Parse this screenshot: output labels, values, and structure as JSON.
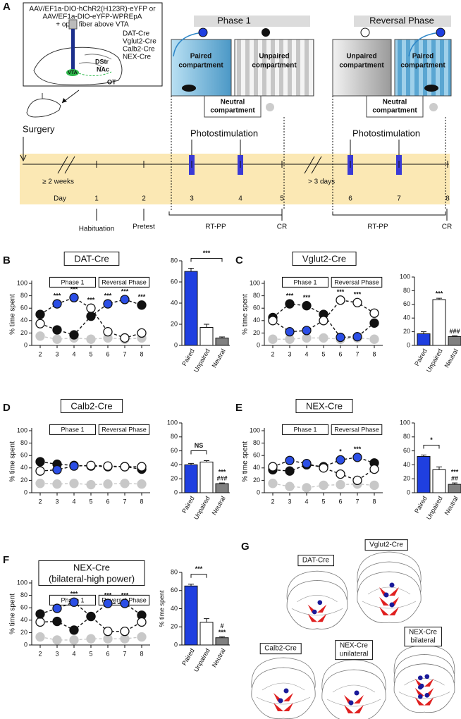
{
  "panel_a": {
    "letter": "A",
    "injection": [
      "AAV/EF1a-DIO-hChR2(H123R)-eYFP or",
      "AAV/EF1a-DIO-eYFP-WPREpA",
      "+ optic fiber above VTA"
    ],
    "lines": [
      "DAT-Cre",
      "Vglut2-Cre",
      "Calb2-Cre",
      "NEX-Cre"
    ],
    "regions": [
      "VTA",
      "DStr",
      "NAc",
      "OT"
    ],
    "phase1": {
      "title": "Phase 1",
      "paired": [
        "Paired",
        "compartment"
      ],
      "unpaired": [
        "Unpaired",
        "compartment"
      ],
      "neutral": [
        "Neutral",
        "compartment"
      ]
    },
    "reversal": {
      "title": "Reversal Phase",
      "paired": [
        "Paired",
        "compartment"
      ],
      "unpaired": [
        "Unpaired",
        "compartment"
      ],
      "neutral": [
        "Neutral",
        "compartment"
      ]
    },
    "timeline": {
      "surgery": "Surgery",
      "interval": "≥ 2 weeks",
      "day": "Day",
      "days": [
        1,
        2,
        3,
        4,
        5,
        6,
        7,
        8
      ],
      "gap": "> 3 days",
      "photostimulation": [
        "Photostimulation",
        "Photostimulation"
      ],
      "stages": [
        "Habituation",
        "Pretest",
        "RT-PP",
        "CR",
        "RT-PP",
        "CR"
      ]
    }
  },
  "chart_data": [
    {
      "type": "line",
      "panel": "B",
      "title": "DAT-Cre",
      "phases": [
        "Phase 1",
        "Reversal Phase"
      ],
      "y_label": "% time spent",
      "categories": [
        "2",
        "3",
        "4",
        "5",
        "6",
        "7",
        "8"
      ],
      "ylim": [
        0,
        100
      ],
      "yticks": [
        0,
        20,
        40,
        60,
        80,
        100
      ],
      "series": [
        {
          "color": "#111111",
          "values": [
            50,
            67,
            77,
            60,
            22,
            12,
            20
          ],
          "point_colors": [
            "#111111",
            "#2b4ee6",
            "#2b4ee6",
            "#ffffff",
            "#ffffff",
            "#ffffff",
            "#ffffff"
          ]
        },
        {
          "color": "#111111",
          "values": [
            35,
            25,
            17,
            47,
            67,
            74,
            65
          ],
          "point_colors": [
            "#ffffff",
            "#111111",
            "#111111",
            "#111111",
            "#2b4ee6",
            "#2b4ee6",
            "#111111"
          ]
        },
        {
          "color": "#c8c8c8",
          "values": [
            15,
            10,
            12,
            10,
            12,
            10,
            12
          ],
          "point_colors": [
            "#c8c8c8",
            "#c8c8c8",
            "#c8c8c8",
            "#c8c8c8",
            "#c8c8c8",
            "#c8c8c8",
            "#c8c8c8"
          ]
        }
      ],
      "annotations": [
        {
          "x": "3",
          "text": "***"
        },
        {
          "x": "4",
          "text": "***"
        },
        {
          "x": "5",
          "text": "***"
        },
        {
          "x": "6",
          "text": "***"
        },
        {
          "x": "7",
          "text": "***"
        },
        {
          "x": "8",
          "text": "***"
        }
      ]
    },
    {
      "type": "bar",
      "categories": [
        "Paired",
        "Unpaired",
        "Neutral"
      ],
      "values": [
        70,
        17,
        7
      ],
      "errors": [
        3,
        3,
        1
      ],
      "colors": [
        "#1f3fe0",
        "#ffffff",
        "#808080"
      ],
      "ylim": [
        0,
        80
      ],
      "yticks": [
        0,
        20,
        40,
        60,
        80
      ],
      "annotations": [
        {
          "text": "***",
          "from": "Paired",
          "to": "Neutral"
        }
      ]
    },
    {
      "type": "line",
      "panel": "C",
      "title": "Vglut2-Cre",
      "phases": [
        "Phase 1",
        "Reversal Phase"
      ],
      "y_label": "% time spent",
      "categories": [
        "2",
        "3",
        "4",
        "5",
        "6",
        "7",
        "8"
      ],
      "ylim": [
        0,
        100
      ],
      "yticks": [
        0,
        20,
        40,
        60,
        80,
        100
      ],
      "series": [
        {
          "color": "#111111",
          "values": [
            40,
            22,
            24,
            40,
            73,
            69,
            52
          ],
          "point_colors": [
            "#ffffff",
            "#2b4ee6",
            "#2b4ee6",
            "#ffffff",
            "#ffffff",
            "#ffffff",
            "#ffffff"
          ]
        },
        {
          "color": "#111111",
          "values": [
            45,
            67,
            64,
            50,
            13,
            14,
            36
          ],
          "point_colors": [
            "#111111",
            "#111111",
            "#111111",
            "#111111",
            "#2b4ee6",
            "#2b4ee6",
            "#111111"
          ]
        },
        {
          "color": "#c8c8c8",
          "values": [
            10,
            10,
            12,
            12,
            10,
            12,
            10
          ],
          "point_colors": [
            "#c8c8c8",
            "#c8c8c8",
            "#c8c8c8",
            "#c8c8c8",
            "#c8c8c8",
            "#c8c8c8",
            "#c8c8c8"
          ]
        }
      ],
      "annotations": [
        {
          "x": "3",
          "text": "***"
        },
        {
          "x": "4",
          "text": "***"
        },
        {
          "x": "6",
          "text": "***"
        },
        {
          "x": "7",
          "text": "***"
        }
      ]
    },
    {
      "type": "bar",
      "categories": [
        "Paired",
        "Unpaired",
        "Neutral"
      ],
      "values": [
        17,
        67,
        13
      ],
      "errors": [
        3,
        2,
        1
      ],
      "colors": [
        "#1f3fe0",
        "#ffffff",
        "#808080"
      ],
      "ylim": [
        0,
        100
      ],
      "yticks": [
        0,
        20,
        40,
        60,
        80,
        100
      ],
      "annotations": [
        {
          "text": [
            "***"
          ],
          "at": "Unpaired"
        },
        {
          "text": [
            "###"
          ],
          "at": "Neutral"
        }
      ]
    },
    {
      "type": "line",
      "panel": "D",
      "title": "Calb2-Cre",
      "phases": [
        "Phase 1",
        "Reversal Phase"
      ],
      "y_label": "% time spent",
      "categories": [
        "2",
        "3",
        "4",
        "5",
        "6",
        "7",
        "8"
      ],
      "ylim": [
        0,
        100
      ],
      "yticks": [
        0,
        20,
        40,
        60,
        80,
        100
      ],
      "series": [
        {
          "color": "#111111",
          "values": [
            35,
            37,
            43,
            44,
            43,
            42,
            42
          ],
          "point_colors": [
            "#ffffff",
            "#2b4ee6",
            "#2b4ee6",
            "#ffffff",
            "#ffffff",
            "#ffffff",
            "#ffffff"
          ]
        },
        {
          "color": "#111111",
          "values": [
            50,
            46,
            44,
            43,
            42,
            42,
            38
          ],
          "point_colors": [
            "#111111",
            "#111111",
            "#111111",
            "#111111",
            "#2b4ee6",
            "#2b4ee6",
            "#111111"
          ]
        },
        {
          "color": "#c8c8c8",
          "values": [
            15,
            14,
            15,
            13,
            14,
            15,
            14
          ],
          "point_colors": [
            "#c8c8c8",
            "#c8c8c8",
            "#c8c8c8",
            "#c8c8c8",
            "#c8c8c8",
            "#c8c8c8",
            "#c8c8c8"
          ]
        }
      ]
    },
    {
      "type": "bar",
      "categories": [
        "Paired",
        "Unpaired",
        "Neutral"
      ],
      "values": [
        40,
        44,
        13
      ],
      "errors": [
        2,
        2,
        1
      ],
      "colors": [
        "#1f3fe0",
        "#ffffff",
        "#808080"
      ],
      "ylim": [
        0,
        100
      ],
      "yticks": [
        0,
        20,
        40,
        60,
        80,
        100
      ],
      "annotations": [
        {
          "text": "NS",
          "from": "Paired",
          "to": "Unpaired"
        },
        {
          "text": [
            "***",
            "###"
          ],
          "at": "Neutral"
        }
      ]
    },
    {
      "type": "line",
      "panel": "E",
      "title": "NEX-Cre",
      "phases": [
        "Phase 1",
        "Reversal Phase"
      ],
      "y_label": "% time spent",
      "categories": [
        "2",
        "3",
        "4",
        "5",
        "6",
        "7",
        "8"
      ],
      "ylim": [
        0,
        100
      ],
      "yticks": [
        0,
        20,
        40,
        60,
        80,
        100
      ],
      "series": [
        {
          "color": "#111111",
          "values": [
            42,
            52,
            47,
            40,
            30,
            20,
            38
          ],
          "point_colors": [
            "#ffffff",
            "#2b4ee6",
            "#2b4ee6",
            "#ffffff",
            "#ffffff",
            "#ffffff",
            "#ffffff"
          ]
        },
        {
          "color": "#111111",
          "values": [
            37,
            35,
            45,
            42,
            53,
            57,
            48
          ],
          "point_colors": [
            "#111111",
            "#111111",
            "#111111",
            "#111111",
            "#2b4ee6",
            "#2b4ee6",
            "#111111"
          ]
        },
        {
          "color": "#c8c8c8",
          "values": [
            15,
            10,
            8,
            12,
            13,
            14,
            12
          ],
          "point_colors": [
            "#c8c8c8",
            "#c8c8c8",
            "#c8c8c8",
            "#c8c8c8",
            "#c8c8c8",
            "#c8c8c8",
            "#c8c8c8"
          ]
        }
      ],
      "annotations": [
        {
          "x": "6",
          "text": "*"
        },
        {
          "x": "7",
          "text": "***"
        }
      ]
    },
    {
      "type": "bar",
      "categories": [
        "Paired",
        "Unpaired",
        "Neutral"
      ],
      "values": [
        52,
        33,
        12
      ],
      "errors": [
        2,
        4,
        2
      ],
      "colors": [
        "#1f3fe0",
        "#ffffff",
        "#808080"
      ],
      "ylim": [
        0,
        100
      ],
      "yticks": [
        0,
        20,
        40,
        60,
        80,
        100
      ],
      "annotations": [
        {
          "text": "*",
          "from": "Paired",
          "to": "Unpaired"
        },
        {
          "text": [
            "***",
            "##"
          ],
          "at": "Neutral"
        }
      ]
    },
    {
      "type": "line",
      "panel": "F",
      "title": [
        "NEX-Cre",
        "(bilateral-high power)"
      ],
      "phases": [
        "Phase 1",
        "Reversal Phase"
      ],
      "y_label": "% time spent",
      "categories": [
        "2",
        "3",
        "4",
        "5",
        "6",
        "7",
        "8"
      ],
      "ylim": [
        0,
        100
      ],
      "yticks": [
        0,
        20,
        40,
        60,
        80,
        100
      ],
      "series": [
        {
          "color": "#111111",
          "values": [
            50,
            59,
            69,
            46,
            22,
            22,
            37
          ],
          "point_colors": [
            "#111111",
            "#2b4ee6",
            "#2b4ee6",
            "#111111",
            "#ffffff",
            "#ffffff",
            "#ffffff"
          ]
        },
        {
          "color": "#111111",
          "values": [
            37,
            38,
            24,
            46,
            67,
            67,
            48
          ],
          "point_colors": [
            "#ffffff",
            "#111111",
            "#111111",
            "#111111",
            "#2b4ee6",
            "#2b4ee6",
            "#111111"
          ]
        },
        {
          "color": "#c8c8c8",
          "values": [
            13,
            8,
            8,
            10,
            10,
            10,
            13
          ],
          "point_colors": [
            "#c8c8c8",
            "#c8c8c8",
            "#c8c8c8",
            "#c8c8c8",
            "#c8c8c8",
            "#c8c8c8",
            "#c8c8c8"
          ]
        }
      ],
      "annotations": [
        {
          "x": "4",
          "text": "***"
        },
        {
          "x": "6",
          "text": "***"
        },
        {
          "x": "7",
          "text": "***"
        }
      ]
    },
    {
      "type": "bar",
      "y_label": "% time spent",
      "categories": [
        "Paired",
        "Unpaired",
        "Neutral"
      ],
      "values": [
        65,
        25,
        8
      ],
      "errors": [
        2,
        4,
        1
      ],
      "colors": [
        "#1f3fe0",
        "#ffffff",
        "#808080"
      ],
      "ylim": [
        0,
        80
      ],
      "yticks": [
        0,
        20,
        40,
        60,
        80
      ],
      "annotations": [
        {
          "text": "***",
          "from": "Paired",
          "to": "Unpaired"
        },
        {
          "text": [
            "#",
            "***"
          ],
          "at": "Neutral"
        }
      ]
    }
  ],
  "panel_g": {
    "letter": "G",
    "labels": [
      [
        "DAT-Cre"
      ],
      [
        "Vglut2-Cre"
      ],
      [
        "Calb2-Cre"
      ],
      [
        "NEX-Cre",
        "unilateral"
      ],
      [
        "NEX-Cre",
        "bilateral"
      ]
    ]
  }
}
